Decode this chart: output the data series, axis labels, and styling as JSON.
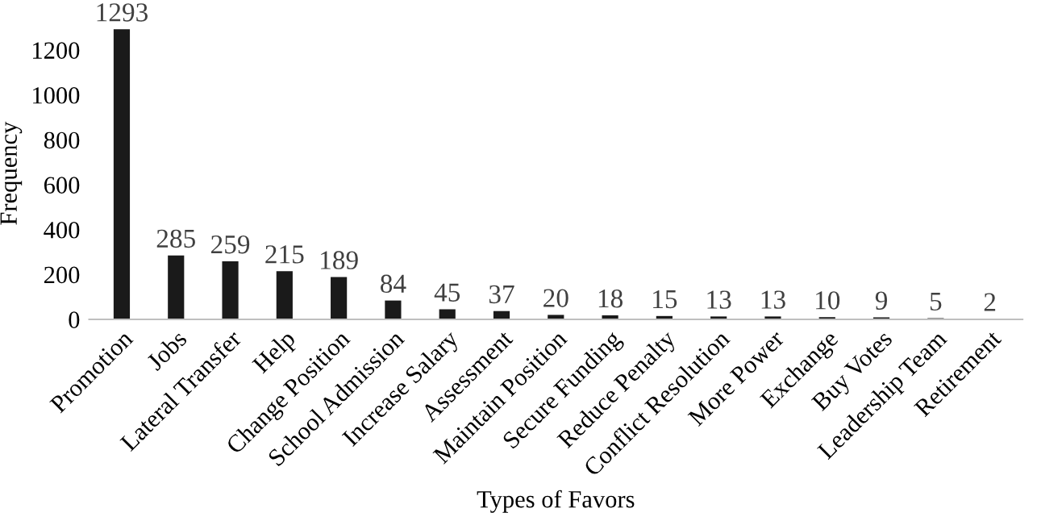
{
  "chart_data": {
    "type": "bar",
    "xlabel": "Types of Favors",
    "ylabel": "Frequency",
    "categories": [
      "Promotion",
      "Jobs",
      "Lateral Transfer",
      "Help",
      "Change Position",
      "School Admission",
      "Increase Salary",
      "Assessment",
      "Maintain Position",
      "Secure Funding",
      "Reduce Penalty",
      "Conflict Resolution",
      "More Power",
      "Exchange",
      "Buy Votes",
      "Leadership Team",
      "Retirement"
    ],
    "values": [
      1293,
      285,
      259,
      215,
      189,
      84,
      45,
      37,
      20,
      18,
      15,
      13,
      13,
      10,
      9,
      5,
      2
    ],
    "color": "#1a1a1a",
    "ylim": [
      0,
      1300
    ],
    "yticks": [
      0,
      200,
      400,
      600,
      800,
      1000,
      1200
    ],
    "grid": false,
    "data_labels": true
  }
}
